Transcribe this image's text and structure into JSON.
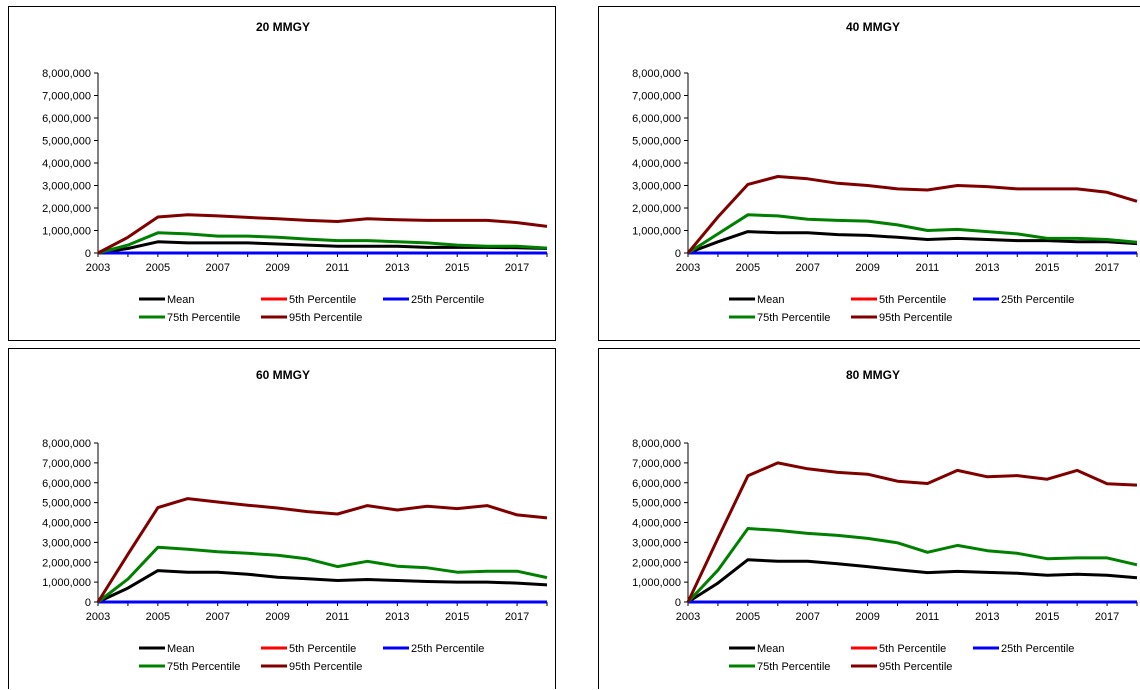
{
  "chart_data": [
    {
      "type": "line",
      "title": "20 MMGY",
      "x": [
        2003,
        2004,
        2005,
        2006,
        2007,
        2008,
        2009,
        2010,
        2011,
        2012,
        2013,
        2014,
        2015,
        2016,
        2017,
        2018
      ],
      "xticks": [
        "2003",
        "2005",
        "2007",
        "2009",
        "2011",
        "2013",
        "2015",
        "2017"
      ],
      "ylim": [
        0,
        8000000
      ],
      "yticks": [
        "0",
        "1,000,000",
        "2,000,000",
        "3,000,000",
        "4,000,000",
        "5,000,000",
        "6,000,000",
        "7,000,000",
        "8,000,000"
      ],
      "series": [
        {
          "name": "Mean",
          "color": "#000000",
          "values": [
            0,
            200000,
            500000,
            450000,
            450000,
            450000,
            400000,
            350000,
            300000,
            300000,
            300000,
            250000,
            250000,
            250000,
            230000,
            200000
          ]
        },
        {
          "name": "5th Percentile",
          "color": "#ff0000",
          "values": [
            0,
            0,
            0,
            0,
            0,
            0,
            0,
            0,
            0,
            0,
            0,
            0,
            0,
            0,
            0,
            0
          ]
        },
        {
          "name": "25th Percentile",
          "color": "#0000ff",
          "values": [
            0,
            0,
            0,
            0,
            0,
            0,
            0,
            0,
            0,
            0,
            0,
            0,
            0,
            0,
            0,
            0
          ]
        },
        {
          "name": "75th Percentile",
          "color": "#008000",
          "values": [
            0,
            350000,
            900000,
            850000,
            750000,
            750000,
            700000,
            620000,
            550000,
            550000,
            500000,
            450000,
            350000,
            300000,
            300000,
            220000
          ]
        },
        {
          "name": "95th Percentile",
          "color": "#800000",
          "values": [
            0,
            700000,
            1600000,
            1700000,
            1650000,
            1580000,
            1520000,
            1450000,
            1400000,
            1520000,
            1480000,
            1450000,
            1450000,
            1450000,
            1350000,
            1180000
          ]
        }
      ]
    },
    {
      "type": "line",
      "title": "40 MMGY",
      "x": [
        2003,
        2004,
        2005,
        2006,
        2007,
        2008,
        2009,
        2010,
        2011,
        2012,
        2013,
        2014,
        2015,
        2016,
        2017,
        2018
      ],
      "xticks": [
        "2003",
        "2005",
        "2007",
        "2009",
        "2011",
        "2013",
        "2015",
        "2017"
      ],
      "ylim": [
        0,
        8000000
      ],
      "yticks": [
        "0",
        "1,000,000",
        "2,000,000",
        "3,000,000",
        "4,000,000",
        "5,000,000",
        "6,000,000",
        "7,000,000",
        "8,000,000"
      ],
      "series": [
        {
          "name": "Mean",
          "color": "#000000",
          "values": [
            0,
            500000,
            950000,
            900000,
            900000,
            820000,
            780000,
            700000,
            600000,
            650000,
            600000,
            550000,
            550000,
            500000,
            500000,
            420000
          ]
        },
        {
          "name": "5th Percentile",
          "color": "#ff0000",
          "values": [
            0,
            0,
            0,
            0,
            0,
            0,
            0,
            0,
            0,
            0,
            0,
            0,
            0,
            0,
            0,
            0
          ]
        },
        {
          "name": "25th Percentile",
          "color": "#0000ff",
          "values": [
            0,
            0,
            0,
            0,
            0,
            0,
            0,
            0,
            0,
            0,
            0,
            0,
            0,
            0,
            0,
            0
          ]
        },
        {
          "name": "75th Percentile",
          "color": "#008000",
          "values": [
            0,
            850000,
            1700000,
            1650000,
            1500000,
            1450000,
            1420000,
            1250000,
            1000000,
            1050000,
            950000,
            850000,
            650000,
            650000,
            600000,
            480000
          ]
        },
        {
          "name": "95th Percentile",
          "color": "#800000",
          "values": [
            0,
            1600000,
            3050000,
            3400000,
            3300000,
            3100000,
            3000000,
            2850000,
            2800000,
            3000000,
            2950000,
            2850000,
            2850000,
            2850000,
            2700000,
            2300000
          ]
        }
      ]
    },
    {
      "type": "line",
      "title": "60 MMGY",
      "x": [
        2003,
        2004,
        2005,
        2006,
        2007,
        2008,
        2009,
        2010,
        2011,
        2012,
        2013,
        2014,
        2015,
        2016,
        2017,
        2018
      ],
      "xticks": [
        "2003",
        "2005",
        "2007",
        "2009",
        "2011",
        "2013",
        "2015",
        "2017"
      ],
      "ylim": [
        0,
        8000000
      ],
      "yticks": [
        "0",
        "1,000,000",
        "2,000,000",
        "3,000,000",
        "4,000,000",
        "5,000,000",
        "6,000,000",
        "7,000,000",
        "8,000,000"
      ],
      "series": [
        {
          "name": "Mean",
          "color": "#000000",
          "values": [
            0,
            700000,
            1580000,
            1500000,
            1500000,
            1400000,
            1250000,
            1170000,
            1080000,
            1130000,
            1080000,
            1030000,
            1000000,
            1000000,
            950000,
            860000
          ]
        },
        {
          "name": "5th Percentile",
          "color": "#ff0000",
          "values": [
            0,
            0,
            0,
            0,
            0,
            0,
            0,
            0,
            0,
            0,
            0,
            0,
            0,
            0,
            0,
            0
          ]
        },
        {
          "name": "25th Percentile",
          "color": "#0000ff",
          "values": [
            0,
            0,
            0,
            0,
            0,
            0,
            0,
            0,
            0,
            0,
            0,
            0,
            0,
            0,
            0,
            0
          ]
        },
        {
          "name": "75th Percentile",
          "color": "#008000",
          "values": [
            0,
            1150000,
            2750000,
            2650000,
            2530000,
            2450000,
            2350000,
            2170000,
            1780000,
            2050000,
            1800000,
            1720000,
            1500000,
            1550000,
            1550000,
            1230000
          ]
        },
        {
          "name": "95th Percentile",
          "color": "#800000",
          "values": [
            0,
            2400000,
            4750000,
            5200000,
            5030000,
            4870000,
            4730000,
            4550000,
            4430000,
            4850000,
            4630000,
            4820000,
            4700000,
            4850000,
            4380000,
            4230000
          ]
        }
      ]
    },
    {
      "type": "line",
      "title": "80 MMGY",
      "x": [
        2003,
        2004,
        2005,
        2006,
        2007,
        2008,
        2009,
        2010,
        2011,
        2012,
        2013,
        2014,
        2015,
        2016,
        2017,
        2018
      ],
      "xticks": [
        "2003",
        "2005",
        "2007",
        "2009",
        "2011",
        "2013",
        "2015",
        "2017"
      ],
      "ylim": [
        0,
        8000000
      ],
      "yticks": [
        "0",
        "1,000,000",
        "2,000,000",
        "3,000,000",
        "4,000,000",
        "5,000,000",
        "6,000,000",
        "7,000,000",
        "8,000,000"
      ],
      "series": [
        {
          "name": "Mean",
          "color": "#000000",
          "values": [
            0,
            950000,
            2130000,
            2050000,
            2050000,
            1920000,
            1780000,
            1620000,
            1480000,
            1540000,
            1490000,
            1450000,
            1350000,
            1400000,
            1350000,
            1220000
          ]
        },
        {
          "name": "5th Percentile",
          "color": "#ff0000",
          "values": [
            0,
            0,
            0,
            0,
            0,
            0,
            0,
            0,
            0,
            0,
            0,
            0,
            0,
            0,
            0,
            0
          ]
        },
        {
          "name": "25th Percentile",
          "color": "#0000ff",
          "values": [
            0,
            0,
            0,
            0,
            0,
            0,
            0,
            0,
            0,
            0,
            0,
            0,
            0,
            0,
            0,
            0
          ]
        },
        {
          "name": "75th Percentile",
          "color": "#008000",
          "values": [
            0,
            1600000,
            3700000,
            3600000,
            3450000,
            3350000,
            3200000,
            2980000,
            2500000,
            2850000,
            2580000,
            2450000,
            2180000,
            2220000,
            2220000,
            1870000
          ]
        },
        {
          "name": "95th Percentile",
          "color": "#800000",
          "values": [
            0,
            3200000,
            6350000,
            7000000,
            6700000,
            6520000,
            6430000,
            6080000,
            5960000,
            6620000,
            6300000,
            6360000,
            6180000,
            6620000,
            5950000,
            5880000
          ]
        }
      ]
    }
  ]
}
